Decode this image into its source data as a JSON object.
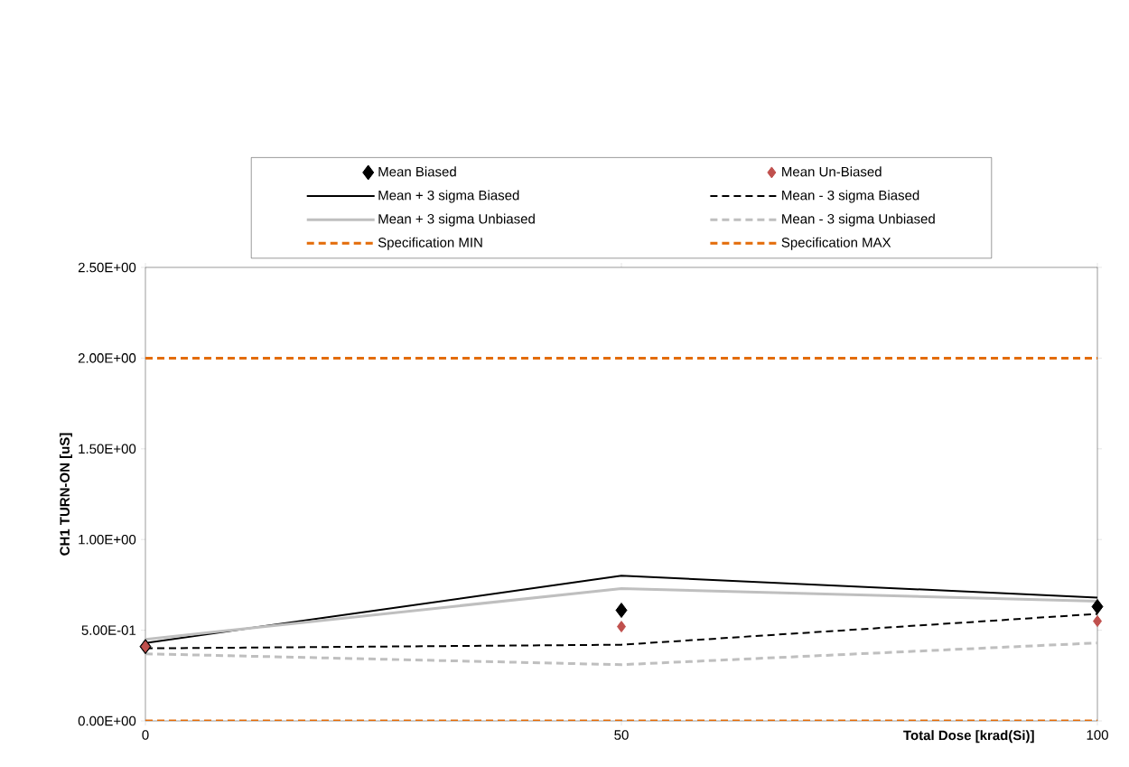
{
  "chart_data": {
    "type": "line",
    "xlabel": "Total Dose [krad(Si)]",
    "ylabel": "CH1 TURN-ON  [uS]",
    "x": [
      0,
      50,
      100
    ],
    "xlim": [
      0,
      100
    ],
    "xticks": [
      0,
      50,
      100
    ],
    "ylim": [
      0,
      2.5
    ],
    "yticks": [
      {
        "value": 0,
        "label": "0.00E+00"
      },
      {
        "value": 0.5,
        "label": "5.00E-01"
      },
      {
        "value": 1,
        "label": "1.00E+00"
      },
      {
        "value": 1.5,
        "label": "1.50E+00"
      },
      {
        "value": 2,
        "label": "2.00E+00"
      },
      {
        "value": 2.5,
        "label": "2.50E+00"
      }
    ],
    "grid": false,
    "legend": "top",
    "series": [
      {
        "name": "Mean Biased",
        "type": "scatter",
        "marker": "diamond",
        "color": "#000000",
        "values": [
          0.41,
          0.61,
          0.63
        ]
      },
      {
        "name": "Mean Un-Biased",
        "type": "scatter",
        "marker": "diamond",
        "color": "#c0504d",
        "values": [
          0.41,
          0.52,
          0.55
        ]
      },
      {
        "name": "Mean + 3 sigma Biased",
        "line_style": "solid",
        "color": "#000000",
        "values": [
          0.43,
          0.8,
          0.68
        ]
      },
      {
        "name": "Mean - 3 sigma Biased",
        "line_style": "dashed",
        "color": "#000000",
        "values": [
          0.4,
          0.42,
          0.59
        ]
      },
      {
        "name": "Mean + 3 sigma Unbiased",
        "line_style": "solid",
        "color": "#bfbfbf",
        "values": [
          0.45,
          0.73,
          0.66
        ]
      },
      {
        "name": "Mean - 3 sigma Unbiased",
        "line_style": "dashed",
        "color": "#bfbfbf",
        "values": [
          0.37,
          0.31,
          0.43
        ]
      },
      {
        "name": "Specification MIN",
        "line_style": "dashed",
        "color": "#e36c09",
        "values": [
          0,
          0,
          0
        ]
      },
      {
        "name": "Specification MAX",
        "line_style": "dashed",
        "color": "#e36c09",
        "values": [
          2,
          2,
          2
        ]
      }
    ]
  }
}
